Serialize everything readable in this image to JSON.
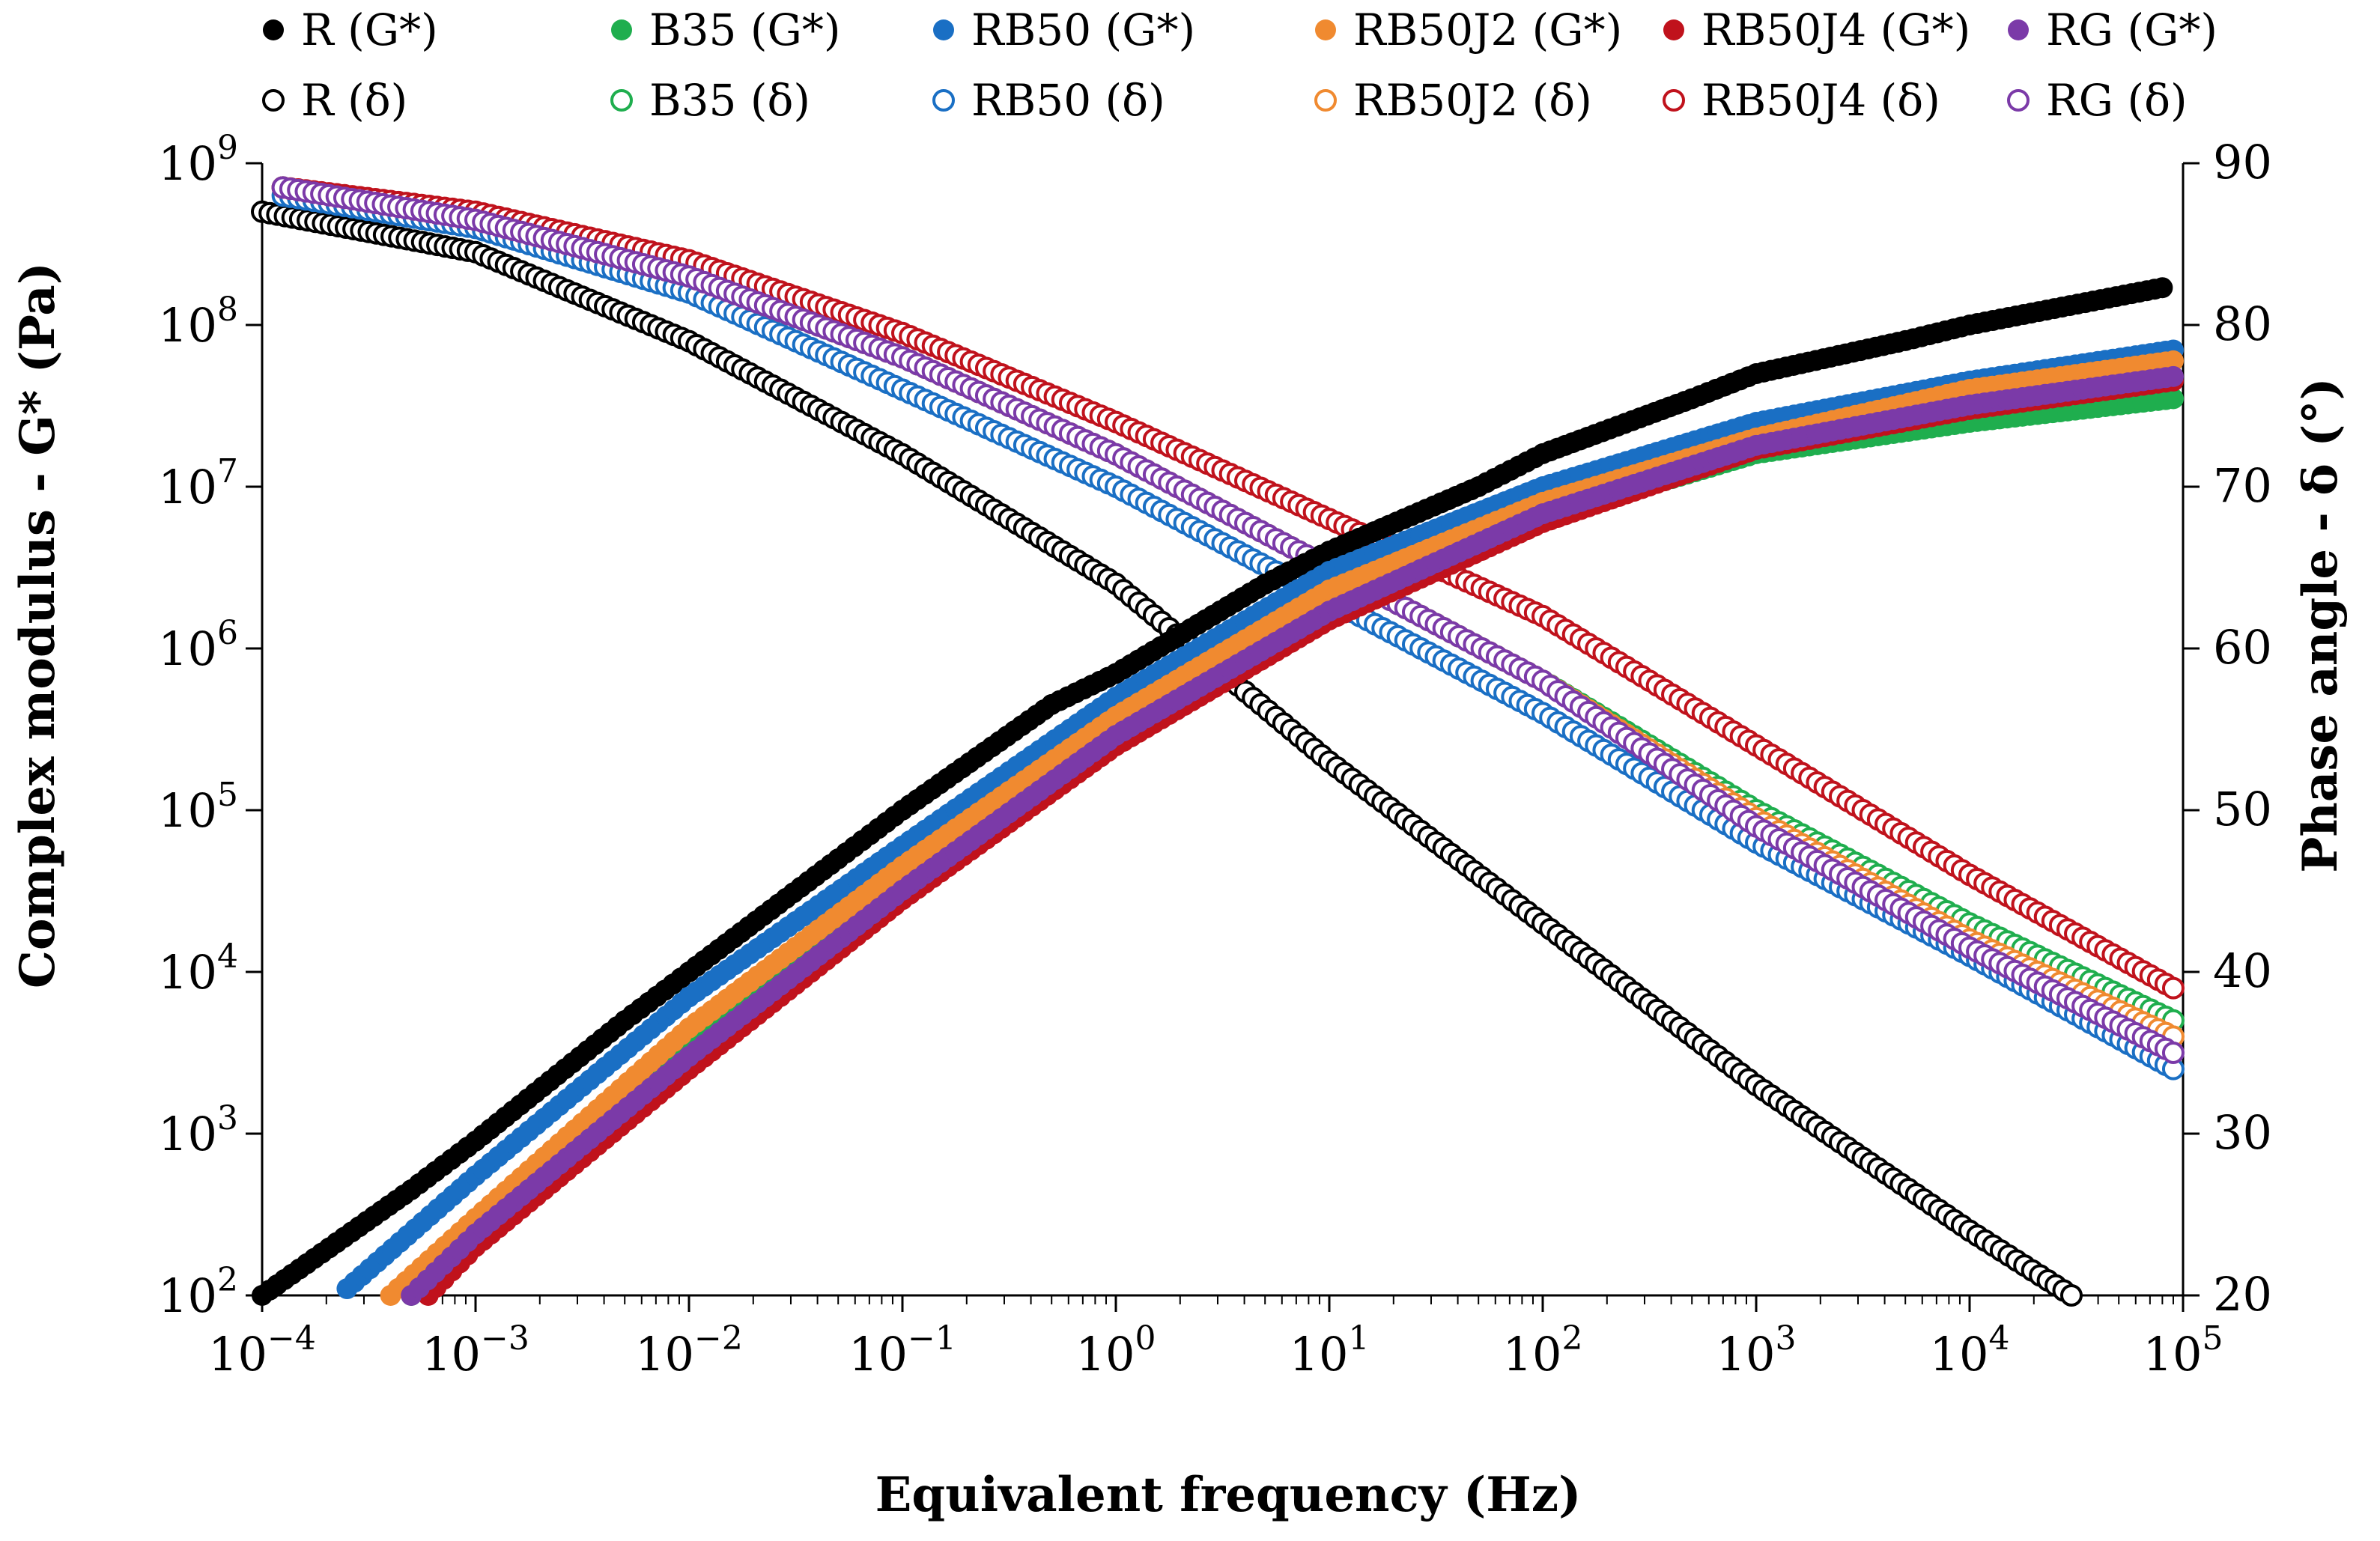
{
  "chart_data": {
    "type": "scatter",
    "xlabel": "Equivalent frequency (Hz)",
    "ylabel_left": "Complex modulus - G* (Pa)",
    "ylabel_right": "Phase  angle - δ (°)",
    "x_scale": "log",
    "xlim": [
      0.0001,
      100000
    ],
    "y_left_scale": "log",
    "y_left_lim": [
      100,
      1000000000
    ],
    "y_right_lim": [
      20,
      90
    ],
    "x_ticks": [
      {
        "base": "10",
        "exp": "−4"
      },
      {
        "base": "10",
        "exp": "−3"
      },
      {
        "base": "10",
        "exp": "−2"
      },
      {
        "base": "10",
        "exp": "−1"
      },
      {
        "base": "10",
        "exp": "0"
      },
      {
        "base": "10",
        "exp": "1"
      },
      {
        "base": "10",
        "exp": "2"
      },
      {
        "base": "10",
        "exp": "3"
      },
      {
        "base": "10",
        "exp": "4"
      },
      {
        "base": "10",
        "exp": "5"
      }
    ],
    "y_left_ticks": [
      {
        "base": "10",
        "exp": "2"
      },
      {
        "base": "10",
        "exp": "3"
      },
      {
        "base": "10",
        "exp": "4"
      },
      {
        "base": "10",
        "exp": "5"
      },
      {
        "base": "10",
        "exp": "6"
      },
      {
        "base": "10",
        "exp": "7"
      },
      {
        "base": "10",
        "exp": "8"
      },
      {
        "base": "10",
        "exp": "9"
      }
    ],
    "y_right_ticks": [
      "20",
      "30",
      "40",
      "50",
      "60",
      "70",
      "80",
      "90"
    ],
    "grid": false,
    "legend_position": "top",
    "series": [
      {
        "name": "R (G*)",
        "axis": "left",
        "marker": "filled",
        "color": "#000000",
        "x": [
          0.0001,
          0.0005,
          0.001,
          0.005,
          0.01,
          0.05,
          0.1,
          0.5,
          1,
          5,
          10,
          50,
          100,
          500,
          1000,
          5000,
          10000,
          80000
        ],
        "y": [
          100,
          450,
          900,
          5000,
          10000,
          50000,
          100000,
          450000,
          700000,
          2500000,
          4000000,
          10000000,
          16000000,
          35000000,
          50000000,
          80000000,
          100000000,
          170000000
        ]
      },
      {
        "name": "B35 (G*)",
        "axis": "left",
        "marker": "filled",
        "color": "#1fae4e",
        "x": [
          0.0005,
          0.001,
          0.01,
          0.1,
          1,
          10,
          100,
          1000,
          10000,
          90000
        ],
        "y": [
          100,
          280,
          3600,
          40000,
          330000,
          1800000,
          6500000,
          16000000,
          25000000,
          35000000
        ]
      },
      {
        "name": "RB50 (G*)",
        "axis": "left",
        "marker": "filled",
        "color": "#1a6fc4",
        "x": [
          0.00025,
          0.001,
          0.01,
          0.1,
          1,
          10,
          100,
          1000,
          10000,
          90000
        ],
        "y": [
          110,
          550,
          7000,
          60000,
          500000,
          3000000,
          10000000,
          25000000,
          45000000,
          70000000
        ]
      },
      {
        "name": "RB50J2 (G*)",
        "axis": "left",
        "marker": "filled",
        "color": "#f08a30",
        "x": [
          0.0004,
          0.001,
          0.01,
          0.1,
          1,
          10,
          100,
          1000,
          10000,
          90000
        ],
        "y": [
          100,
          300,
          4500,
          45000,
          380000,
          2300000,
          8000000,
          20000000,
          40000000,
          60000000
        ]
      },
      {
        "name": "RB50J4 (G*)",
        "axis": "left",
        "marker": "filled",
        "color": "#c0121c",
        "x": [
          0.0006,
          0.001,
          0.01,
          0.1,
          1,
          10,
          100,
          1000,
          10000,
          90000
        ],
        "y": [
          100,
          200,
          2500,
          28000,
          250000,
          1500000,
          6000000,
          17000000,
          30000000,
          45000000
        ]
      },
      {
        "name": "RG (G*)",
        "axis": "left",
        "marker": "filled",
        "color": "#7b3aa8",
        "x": [
          0.0005,
          0.001,
          0.01,
          0.1,
          1,
          10,
          100,
          1000,
          10000,
          90000
        ],
        "y": [
          100,
          240,
          3000,
          32000,
          290000,
          1700000,
          6800000,
          18000000,
          32000000,
          48000000
        ]
      },
      {
        "name": "R (δ)",
        "axis": "right",
        "marker": "open",
        "color": "#000000",
        "x": [
          0.0001,
          0.001,
          0.01,
          0.1,
          1,
          10,
          100,
          1000,
          10000,
          30000
        ],
        "y": [
          87,
          84.5,
          79,
          72,
          64,
          53,
          43,
          33,
          24,
          20
        ]
      },
      {
        "name": "B35 (δ)",
        "axis": "right",
        "marker": "open",
        "color": "#1fae4e",
        "x": [
          0.000125,
          0.001,
          0.01,
          0.1,
          1,
          10,
          100,
          1000,
          10000,
          90000
        ],
        "y": [
          88.5,
          86.5,
          83,
          78,
          72,
          65,
          58,
          50,
          43,
          37
        ]
      },
      {
        "name": "RB50 (δ)",
        "axis": "right",
        "marker": "open",
        "color": "#1a6fc4",
        "x": [
          0.000125,
          0.001,
          0.01,
          0.1,
          1,
          10,
          100,
          1000,
          10000,
          90000
        ],
        "y": [
          88,
          86,
          82,
          76,
          70,
          63,
          56,
          48,
          41,
          34
        ]
      },
      {
        "name": "RB50J2 (δ)",
        "axis": "right",
        "marker": "open",
        "color": "#f08a30",
        "x": [
          0.000125,
          0.001,
          0.01,
          0.1,
          1,
          10,
          100,
          1000,
          10000,
          90000
        ],
        "y": [
          88.5,
          86.5,
          83,
          78,
          72,
          65,
          58,
          49.5,
          42,
          36
        ]
      },
      {
        "name": "RB50J4 (δ)",
        "axis": "right",
        "marker": "open",
        "color": "#c0121c",
        "x": [
          0.000125,
          0.001,
          0.01,
          0.1,
          1,
          10,
          100,
          1000,
          10000,
          90000
        ],
        "y": [
          88.5,
          87,
          84,
          79.5,
          74,
          68,
          62,
          54,
          46,
          39
        ]
      },
      {
        "name": "RG (δ)",
        "axis": "right",
        "marker": "open",
        "color": "#7b3aa8",
        "x": [
          0.000125,
          0.001,
          0.01,
          0.1,
          1,
          10,
          100,
          1000,
          10000,
          90000
        ],
        "y": [
          88.5,
          86.5,
          83,
          78,
          72,
          65,
          58,
          49,
          41.5,
          35
        ]
      }
    ]
  }
}
